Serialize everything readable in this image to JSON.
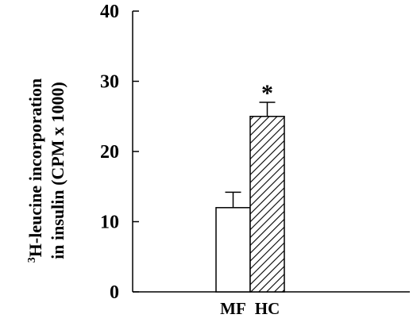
{
  "chart_data": {
    "type": "bar",
    "title": "",
    "ylabel_line1_sup": "3",
    "ylabel_line1": "H-leucine incorporation",
    "ylabel_line2": "in insulin (CPM x 1000)",
    "xlabel": "",
    "ylim": [
      0,
      40
    ],
    "yticks": [
      0,
      10,
      20,
      30,
      40
    ],
    "categories": [
      "MF",
      "HC"
    ],
    "values": [
      12,
      25
    ],
    "errors": [
      2.2,
      2.0
    ],
    "fills": [
      "white",
      "hatched"
    ],
    "annotations": [
      {
        "category": "HC",
        "text": "*"
      }
    ],
    "grid": false,
    "legend": "none"
  }
}
